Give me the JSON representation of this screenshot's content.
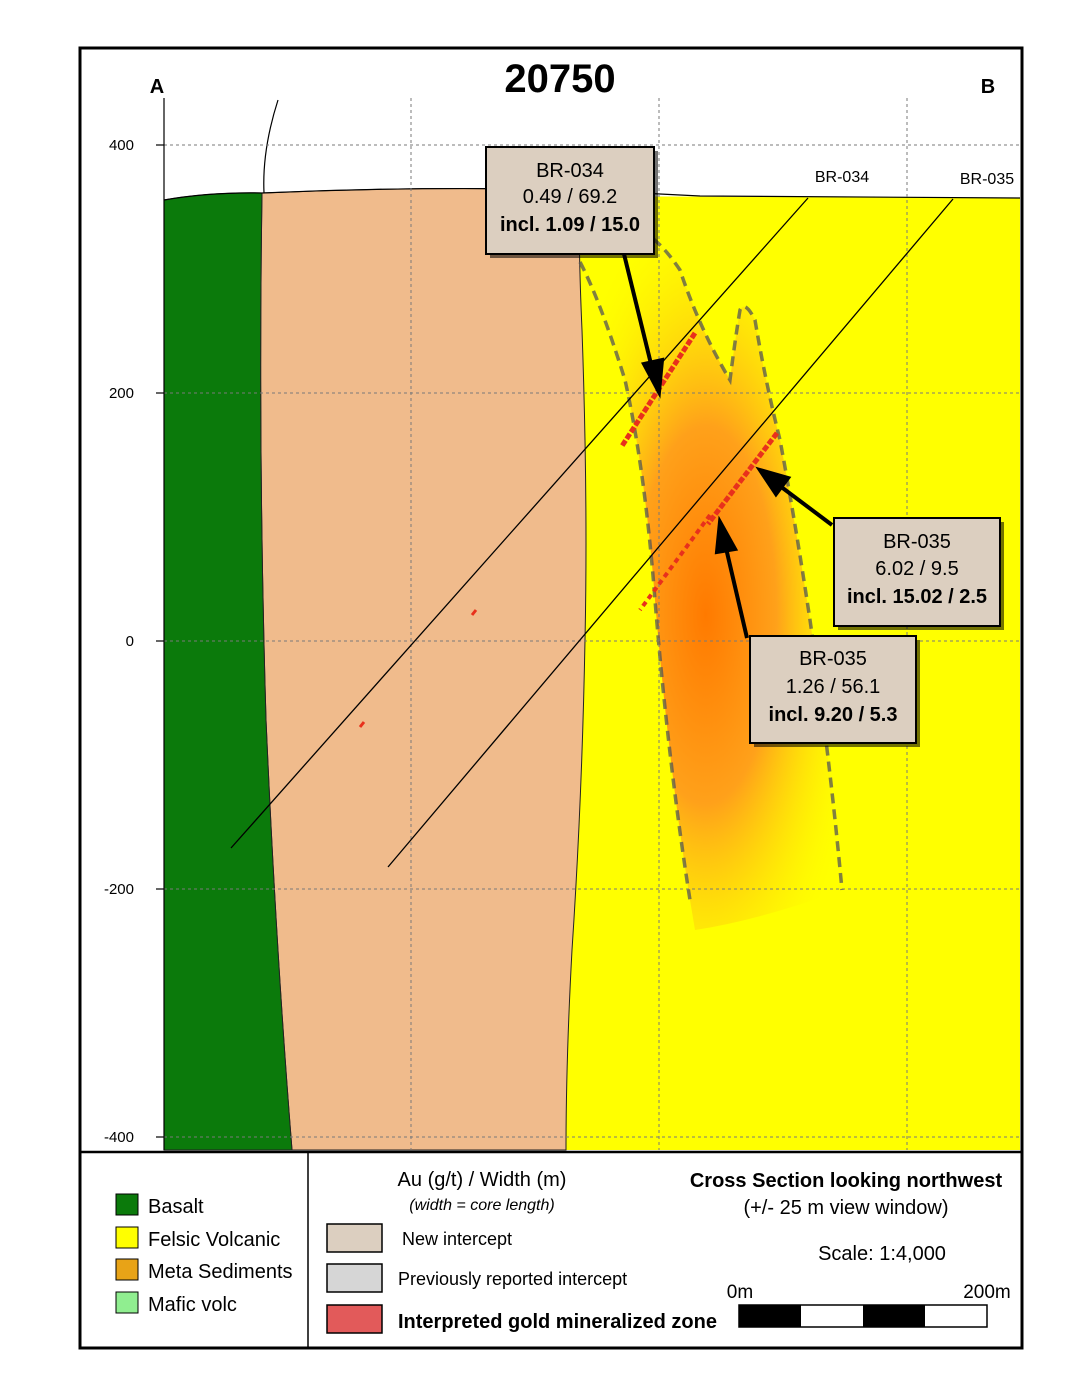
{
  "section": {
    "title": "20750",
    "end_left": "A",
    "end_right": "B"
  },
  "y_axis": {
    "ticks": [
      "400",
      "200",
      "0",
      "-200",
      "-400"
    ]
  },
  "holes": [
    {
      "name": "BR-034"
    },
    {
      "name": "BR-035"
    }
  ],
  "callouts": [
    {
      "hole": "BR-034",
      "result": "0.49 / 69.2",
      "included": "incl. 1.09 / 15.0"
    },
    {
      "hole": "BR-035",
      "result": "6.02 / 9.5",
      "included": "incl. 15.02 / 2.5"
    },
    {
      "hole": "BR-035",
      "result": "1.26 / 56.1",
      "included": "incl. 9.20 / 5.3"
    }
  ],
  "legend": {
    "units": [
      {
        "label": "Basalt",
        "color": "#0b7a0b"
      },
      {
        "label": "Felsic Volcanic",
        "color": "#ffff00"
      },
      {
        "label": "Meta Sediments",
        "color": "#e8a317"
      },
      {
        "label": "Mafic volc",
        "color": "#90ee90"
      }
    ],
    "intercepts": {
      "heading": "Au (g/t) / Width (m)",
      "subheading": "(width = core length)",
      "items": [
        {
          "label": "New intercept",
          "color": "#dccfc0"
        },
        {
          "label": "Previously reported  intercept",
          "color": "#d6d6d6"
        },
        {
          "label": "Interpreted gold mineralized zone",
          "color": "#e25a5a"
        }
      ]
    },
    "view": {
      "title": "Cross Section looking northwest",
      "window": "(+/- 25 m view window)",
      "scale": "Scale: 1:4,000",
      "bar_start": "0m",
      "bar_end": "200m"
    }
  },
  "colors": {
    "basalt": "#0b7a0b",
    "sediments": "#f0bb8c",
    "felsic": "#ffff00",
    "zone_core": "#ff7a00"
  }
}
